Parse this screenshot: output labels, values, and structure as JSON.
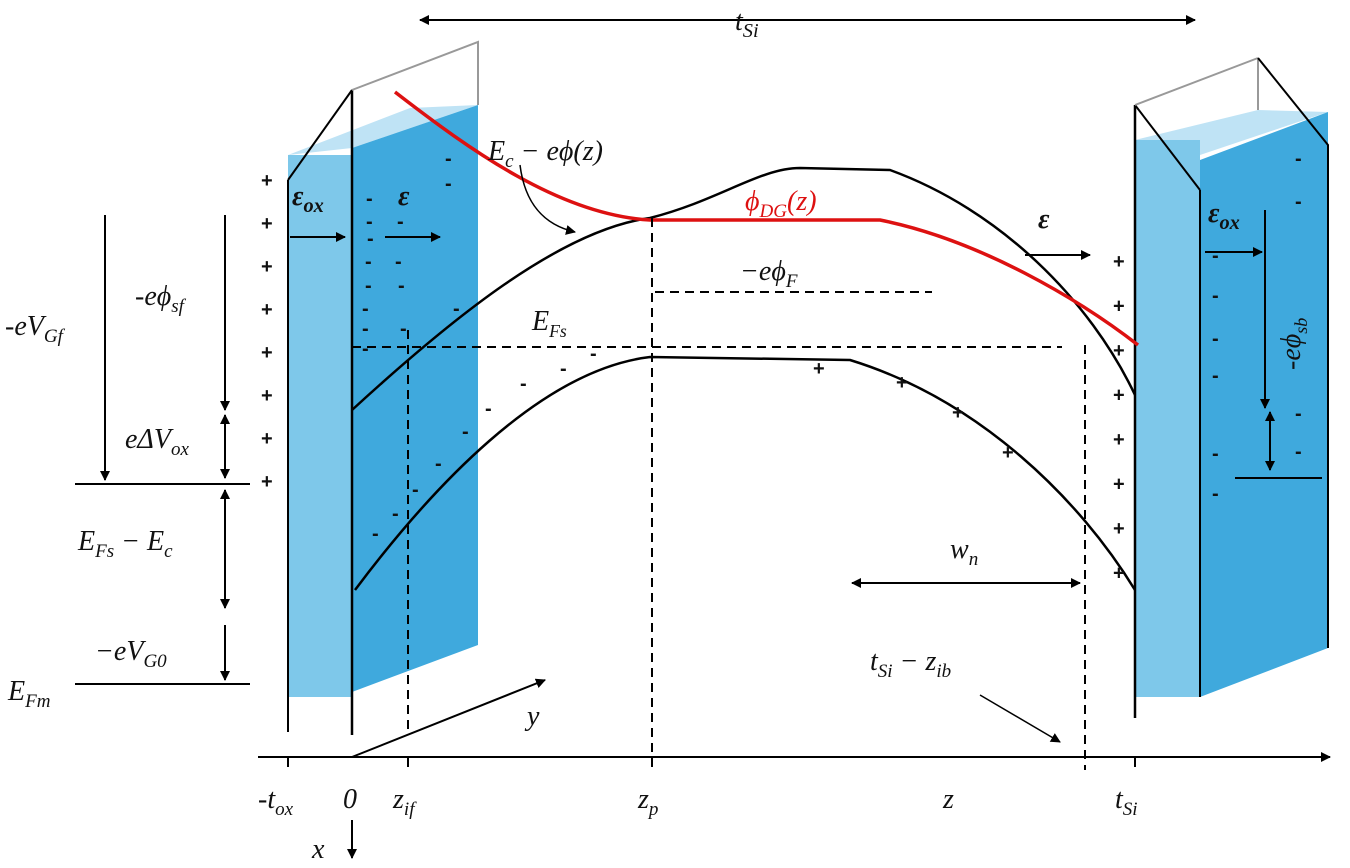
{
  "labels": {
    "tsi_top": {
      "base": "t",
      "sub": "Si"
    },
    "ec_phi": {
      "base": "E",
      "sub": "c",
      "tail": " − eϕ(z)"
    },
    "phi_dg": {
      "base": "ϕ",
      "sub": "DG",
      "tail": "(z)"
    },
    "eps_ox_left": {
      "base": "ε",
      "sub": "ox"
    },
    "eps_left": {
      "base": "ε"
    },
    "eps_right": {
      "base": "ε"
    },
    "eps_ox_right": {
      "base": "ε",
      "sub": "ox"
    },
    "phi_f": {
      "base": "−eϕ",
      "sub": "F"
    },
    "efs_mid": {
      "base": "E",
      "sub": "Fs"
    },
    "phi_sf": {
      "base": "-eϕ",
      "sub": "sf"
    },
    "vgf": {
      "base": "-eV",
      "sub": "Gf"
    },
    "dvox": {
      "base": "eΔV",
      "sub": "ox"
    },
    "efs_ec": {
      "base": "E",
      "sub": "Fs",
      "tail": " − E"
    },
    "vg0": {
      "base": "−eV",
      "sub": "G0"
    },
    "efm": {
      "base": "E",
      "sub": "Fm"
    },
    "wn": {
      "base": "w",
      "sub": "n"
    },
    "tsi_zib": {
      "base": "t",
      "sub": "Si",
      "tail": " − z"
    },
    "y_axis": {
      "base": "y"
    },
    "x_axis": {
      "base": "x"
    },
    "tick_tox": {
      "base": "-t",
      "sub": "ox"
    },
    "tick_0": {
      "base": "0"
    },
    "tick_zif": {
      "base": "z",
      "sub": "if"
    },
    "tick_zp": {
      "base": "z",
      "sub": "p"
    },
    "tick_z": {
      "base": "z"
    },
    "tick_tsi": {
      "base": "t",
      "sub": "Si"
    },
    "phi_sb": {
      "base": "-eϕ",
      "sub": "sb"
    }
  },
  "efs_ec_sub": "c",
  "tsi_zib_sub": "ib",
  "plus": "+",
  "minus": "-"
}
